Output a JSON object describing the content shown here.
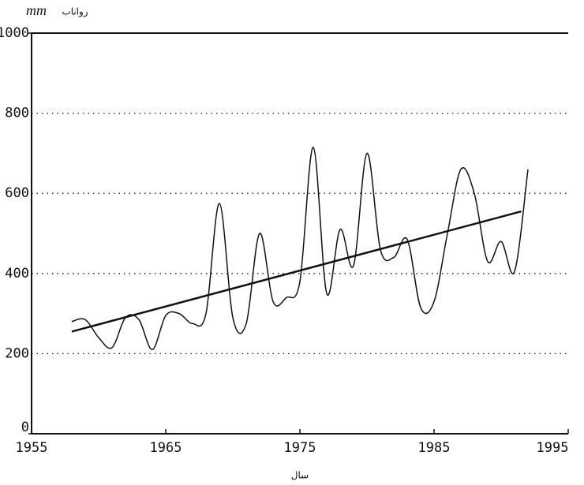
{
  "chart_data": {
    "type": "line",
    "y_unit": "mm",
    "y_label": "رواناب",
    "x_label": "سال",
    "series": [
      {
        "x": [
          1958,
          1959,
          1960,
          1961,
          1962,
          1963,
          1964,
          1965,
          1966,
          1967,
          1968,
          1969,
          1970,
          1971,
          1972,
          1973,
          1974,
          1975,
          1976,
          1977,
          1978,
          1979,
          1980,
          1981,
          1982,
          1983,
          1984,
          1985,
          1986,
          1987,
          1988,
          1989,
          1990,
          1991,
          1992
        ],
        "values": [
          280,
          285,
          240,
          215,
          290,
          285,
          210,
          295,
          300,
          275,
          300,
          575,
          290,
          275,
          500,
          330,
          340,
          380,
          715,
          350,
          510,
          420,
          700,
          460,
          440,
          485,
          315,
          330,
          500,
          660,
          600,
          430,
          480,
          405,
          660
        ],
        "color": "#111",
        "smooth": true
      },
      {
        "x": [
          1958,
          1991.5
        ],
        "values": [
          255,
          555
        ],
        "color": "#111",
        "smooth": false
      }
    ],
    "xlim": [
      1955,
      1995
    ],
    "xticks": [
      1955,
      1965,
      1975,
      1985,
      1995
    ],
    "ylim": [
      0,
      1000
    ],
    "yticks": [
      0,
      200,
      400,
      600,
      800,
      {
        "value": 1000,
        "label": "1000"
      }
    ],
    "grid": true
  }
}
